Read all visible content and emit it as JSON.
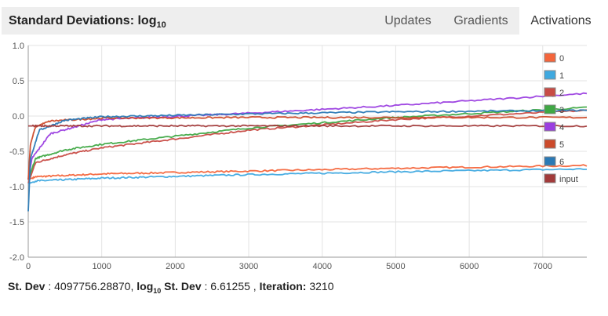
{
  "header": {
    "title_main": "Standard Deviations: log",
    "title_sub": "10",
    "tabs": [
      {
        "label": "Updates",
        "active": false
      },
      {
        "label": "Gradients",
        "active": false
      },
      {
        "label": "Activations",
        "active": true
      }
    ]
  },
  "chart_data": {
    "type": "line",
    "title": "Standard Deviations: log10",
    "xlabel": "",
    "ylabel": "",
    "xlim": [
      0,
      7600
    ],
    "ylim": [
      -2.0,
      1.0
    ],
    "x_ticks": [
      0,
      1000,
      2000,
      3000,
      4000,
      5000,
      6000,
      7000
    ],
    "y_ticks": [
      "1.0",
      "0.5",
      "0.0",
      "-0.5",
      "-1.0",
      "-1.5",
      "-2.0"
    ],
    "grid": true,
    "legend_position": "right",
    "series": [
      {
        "name": "0",
        "color": "#f4653b",
        "x": [
          0,
          100,
          1000,
          3000,
          5000,
          7600
        ],
        "y": [
          -0.9,
          -0.86,
          -0.82,
          -0.78,
          -0.74,
          -0.7
        ]
      },
      {
        "name": "1",
        "color": "#3fa9e0",
        "x": [
          0,
          100,
          1000,
          3000,
          5000,
          7600
        ],
        "y": [
          -0.96,
          -0.92,
          -0.88,
          -0.83,
          -0.79,
          -0.75
        ]
      },
      {
        "name": "2",
        "color": "#c84b45",
        "x": [
          0,
          100,
          500,
          1000,
          3000,
          5000,
          7600
        ],
        "y": [
          -0.95,
          -0.66,
          -0.55,
          -0.45,
          -0.2,
          -0.05,
          0.08
        ]
      },
      {
        "name": "3",
        "color": "#3fa844",
        "x": [
          0,
          100,
          500,
          1000,
          3000,
          5000,
          7600
        ],
        "y": [
          -0.9,
          -0.6,
          -0.48,
          -0.4,
          -0.17,
          -0.02,
          0.12
        ]
      },
      {
        "name": "4",
        "color": "#9b3fe0",
        "x": [
          0,
          50,
          300,
          1000,
          3000,
          5000,
          7600
        ],
        "y": [
          -0.9,
          -0.6,
          -0.25,
          -0.05,
          0.04,
          0.15,
          0.32
        ]
      },
      {
        "name": "5",
        "color": "#cc4a2a",
        "x": [
          0,
          30,
          100,
          300,
          1000,
          3000,
          7600
        ],
        "y": [
          -0.9,
          -0.4,
          -0.15,
          -0.07,
          -0.03,
          -0.02,
          -0.02
        ]
      },
      {
        "name": "6",
        "color": "#2a79b5",
        "x": [
          0,
          30,
          150,
          500,
          1000,
          3000,
          5000,
          7600
        ],
        "y": [
          -1.35,
          -0.6,
          -0.2,
          -0.06,
          -0.01,
          0.03,
          0.06,
          0.08
        ]
      },
      {
        "name": "input",
        "color": "#a23a3a",
        "x": [
          0,
          7600
        ],
        "y": [
          -0.14,
          -0.14
        ]
      }
    ]
  },
  "footer": {
    "stdev_label": "St. Dev",
    "stdev_value": "4097756.28870",
    "log_label": "log",
    "log_sub": "10",
    "log_stdev_label": "St. Dev",
    "log_stdev_value": "6.61255",
    "iteration_label": "Iteration:",
    "iteration_value": "3210"
  }
}
